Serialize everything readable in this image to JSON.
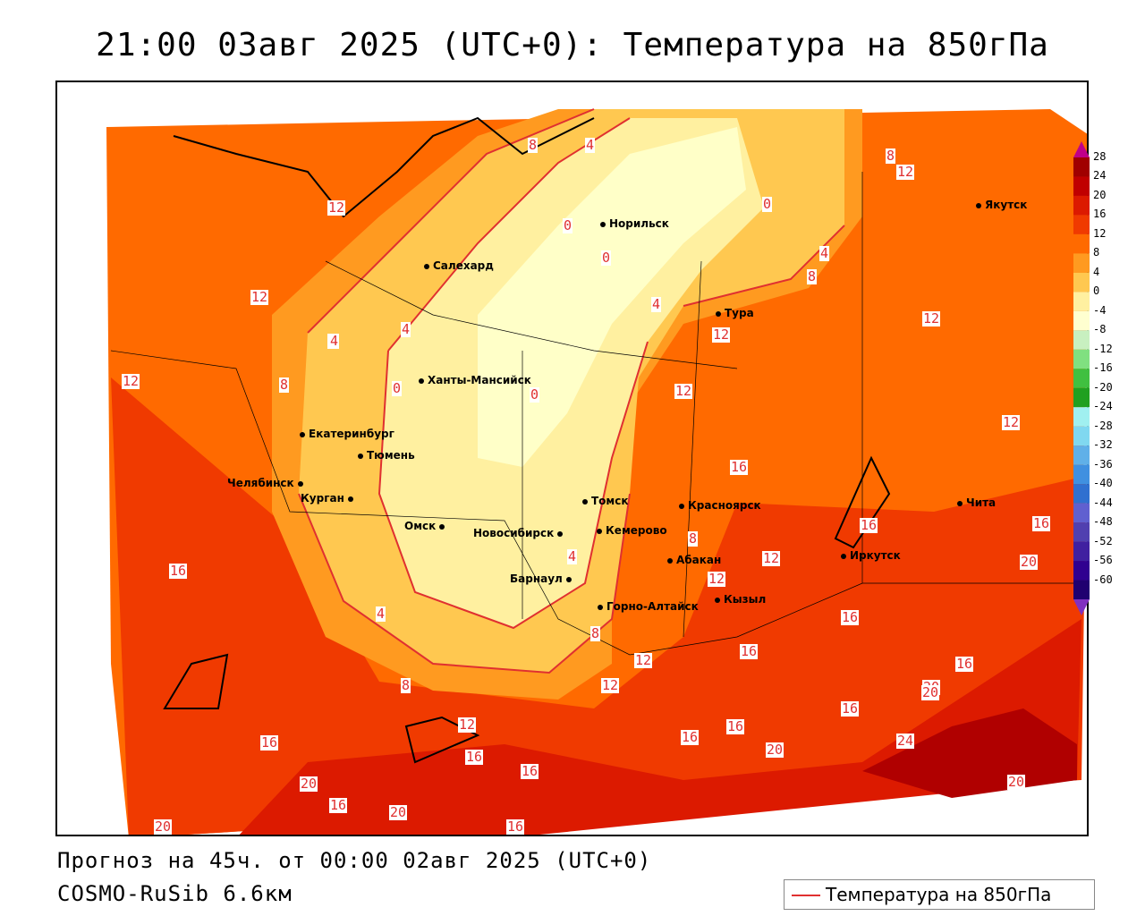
{
  "header": {
    "title": "21:00 03авг 2025 (UTC+0): Температура на 850гПа"
  },
  "footer": {
    "forecast": "Прогноз на 45ч. от 00:00 02авг 2025 (UTC+0)",
    "model": "COSMO-RuSib 6.6км"
  },
  "legend": {
    "label": "Температура на 850гПа",
    "line_color": "#e03030"
  },
  "colorscale": {
    "labels": [
      "28",
      "24",
      "20",
      "16",
      "12",
      "8",
      "4",
      "0",
      "-4",
      "-8",
      "-12",
      "-16",
      "-20",
      "-24",
      "-28",
      "-32",
      "-36",
      "-40",
      "-44",
      "-48",
      "-52",
      "-56",
      "-60"
    ],
    "colors": [
      "#a00000",
      "#c00000",
      "#dc1a00",
      "#f03a00",
      "#ff6a00",
      "#ff9a20",
      "#ffc850",
      "#fff0a0",
      "#ffffd0",
      "#c8f0c0",
      "#80e080",
      "#40c040",
      "#20a020",
      "#a0f0f0",
      "#80d8f0",
      "#60b0e8",
      "#4090e0",
      "#3070d0",
      "#6060d0",
      "#5040b0",
      "#4020a0",
      "#300090",
      "#200070"
    ]
  },
  "cities": [
    {
      "name": "Якутск"
    },
    {
      "name": "Норильск"
    },
    {
      "name": "Салехард"
    },
    {
      "name": "Тура"
    },
    {
      "name": "Ханты-Мансийск"
    },
    {
      "name": "Екатеринбург"
    },
    {
      "name": "Тюмень"
    },
    {
      "name": "Челябинск"
    },
    {
      "name": "Курган"
    },
    {
      "name": "Омск"
    },
    {
      "name": "Новосибирск"
    },
    {
      "name": "Томск"
    },
    {
      "name": "Кемерово"
    },
    {
      "name": "Красноярск"
    },
    {
      "name": "Абакан"
    },
    {
      "name": "Барнаул"
    },
    {
      "name": "Горно-Алтайск"
    },
    {
      "name": "Кызыл"
    },
    {
      "name": "Иркутск"
    },
    {
      "name": "Чита"
    }
  ],
  "contour_labels": [
    "8",
    "4",
    "0",
    "0",
    "0",
    "4",
    "8",
    "12",
    "12",
    "12",
    "8",
    "4",
    "0",
    "4",
    "0",
    "0",
    "4",
    "8",
    "12",
    "12",
    "12",
    "12",
    "12",
    "8",
    "16",
    "16",
    "8",
    "12",
    "4",
    "8",
    "4",
    "16",
    "16",
    "12",
    "16",
    "20",
    "16",
    "20",
    "12",
    "8",
    "12",
    "16",
    "16",
    "20",
    "24",
    "16",
    "16",
    "12",
    "16",
    "16",
    "20",
    "20",
    "20",
    "16",
    "20",
    "16",
    "20",
    "16"
  ]
}
